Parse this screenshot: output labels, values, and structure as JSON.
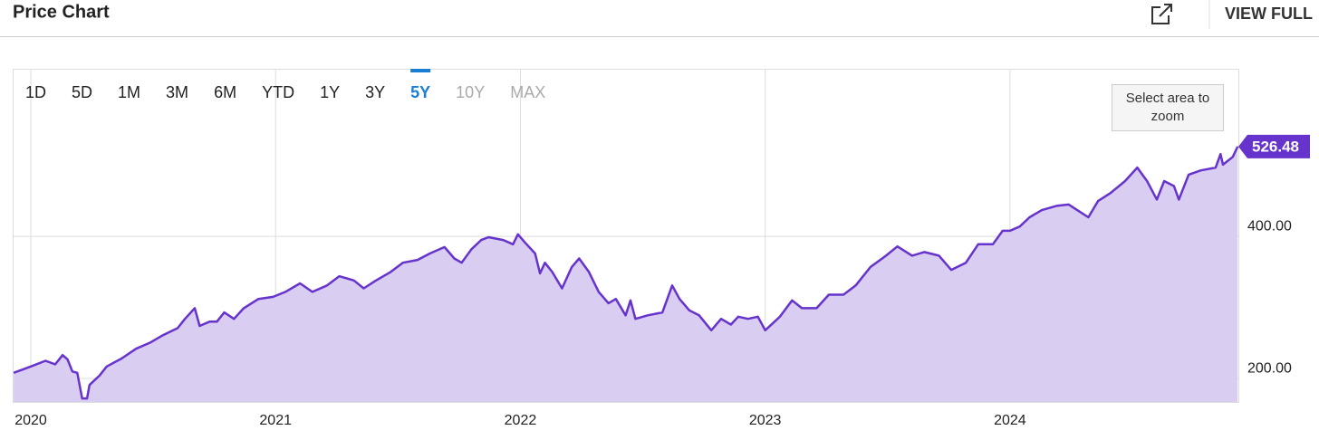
{
  "header": {
    "title": "Price Chart",
    "action": "VIEW FULL"
  },
  "chart_data": {
    "type": "area",
    "range_buttons": [
      {
        "label": "1D",
        "state": "normal"
      },
      {
        "label": "5D",
        "state": "normal"
      },
      {
        "label": "1M",
        "state": "normal"
      },
      {
        "label": "3M",
        "state": "normal"
      },
      {
        "label": "6M",
        "state": "normal"
      },
      {
        "label": "YTD",
        "state": "normal"
      },
      {
        "label": "1Y",
        "state": "normal"
      },
      {
        "label": "3Y",
        "state": "normal"
      },
      {
        "label": "5Y",
        "state": "active"
      },
      {
        "label": "10Y",
        "state": "disabled"
      },
      {
        "label": "MAX",
        "state": "disabled"
      }
    ],
    "zoom_hint": "Select area to zoom",
    "color": "#6633cc",
    "fill": "#d9cdf1",
    "grid": true,
    "x": [
      2019.93,
      2020.0,
      2020.06,
      2020.1,
      2020.13,
      2020.15,
      2020.17,
      2020.19,
      2020.21,
      2020.23,
      2020.24,
      2020.28,
      2020.31,
      2020.37,
      2020.43,
      2020.49,
      2020.54,
      2020.6,
      2020.63,
      2020.67,
      2020.69,
      2020.73,
      2020.76,
      2020.79,
      2020.83,
      2020.87,
      2020.93,
      2020.99,
      2021.04,
      2021.1,
      2021.15,
      2021.21,
      2021.26,
      2021.32,
      2021.36,
      2021.41,
      2021.47,
      2021.52,
      2021.58,
      2021.63,
      2021.69,
      2021.73,
      2021.76,
      2021.8,
      2021.84,
      2021.87,
      2021.93,
      2021.97,
      2021.99,
      2022.02,
      2022.06,
      2022.08,
      2022.1,
      2022.13,
      2022.17,
      2022.21,
      2022.24,
      2022.28,
      2022.32,
      2022.36,
      2022.39,
      2022.43,
      2022.45,
      2022.47,
      2022.52,
      2022.58,
      2022.62,
      2022.65,
      2022.69,
      2022.73,
      2022.78,
      2022.82,
      2022.86,
      2022.89,
      2022.93,
      2022.97,
      2023.0,
      2023.06,
      2023.11,
      2023.15,
      2023.21,
      2023.26,
      2023.32,
      2023.37,
      2023.43,
      2023.49,
      2023.54,
      2023.6,
      2023.65,
      2023.71,
      2023.76,
      2023.82,
      2023.87,
      2023.93,
      2023.97,
      2024.0,
      2024.04,
      2024.08,
      2024.13,
      2024.19,
      2024.24,
      2024.28,
      2024.32,
      2024.36,
      2024.41,
      2024.47,
      2024.52,
      2024.56,
      2024.6,
      2024.63,
      2024.67,
      2024.69,
      2024.73,
      2024.78,
      2024.84,
      2024.86,
      2024.87,
      2024.91,
      2024.93
    ],
    "values": [
      208,
      217,
      225,
      220,
      233,
      227,
      210,
      208,
      172,
      172,
      191,
      204,
      217,
      228,
      242,
      251,
      261,
      271,
      284,
      299,
      274,
      280,
      280,
      293,
      284,
      299,
      312,
      315,
      322,
      334,
      322,
      331,
      344,
      338,
      327,
      338,
      350,
      363,
      367,
      376,
      385,
      369,
      363,
      382,
      395,
      399,
      395,
      389,
      403,
      391,
      376,
      348,
      363,
      350,
      327,
      357,
      369,
      350,
      322,
      306,
      312,
      289,
      310,
      284,
      289,
      293,
      331,
      312,
      296,
      289,
      268,
      284,
      276,
      287,
      284,
      287,
      268,
      287,
      310,
      299,
      299,
      318,
      318,
      331,
      357,
      372,
      386,
      373,
      378,
      373,
      353,
      363,
      389,
      389,
      408,
      408,
      414,
      427,
      437,
      443,
      445,
      436,
      427,
      450,
      461,
      478,
      497,
      478,
      452,
      478,
      471,
      452,
      487,
      493,
      497,
      516,
      501,
      512,
      526.48
    ],
    "xlim": [
      2019.926,
      2024.933
    ],
    "xticks": [
      2020,
      2021,
      2022,
      2023,
      2024
    ],
    "ylim": [
      167,
      636
    ],
    "yticks": [
      {
        "value": 200,
        "label": "200.00"
      },
      {
        "value": 400,
        "label": "400.00"
      }
    ]
  }
}
